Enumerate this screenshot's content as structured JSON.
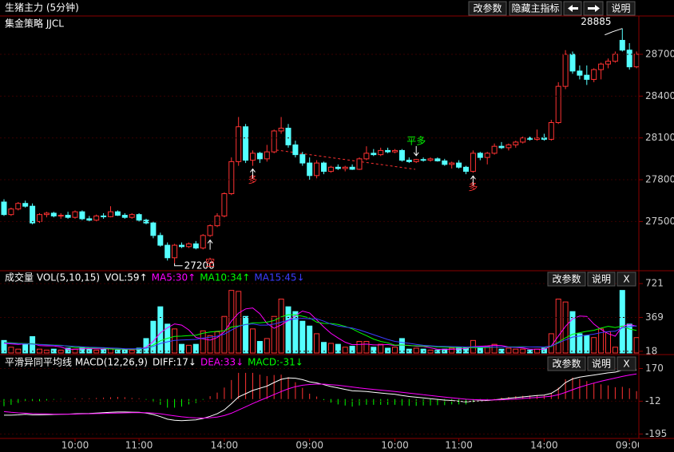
{
  "chart_data": [
    {
      "type": "candlestick",
      "title": "生猪主力 (5分钟)",
      "subtitle": "集金策略 JJCL",
      "buttons": [
        "改参数",
        "隐藏主指标",
        "说明"
      ],
      "up_color": "#ff3232",
      "down_color": "#54ffff",
      "categories": [
        null,
        null,
        null,
        null,
        null,
        null,
        null,
        null,
        null,
        null,
        "10:00",
        null,
        null,
        null,
        null,
        null,
        null,
        null,
        null,
        "11:00",
        null,
        null,
        null,
        null,
        null,
        null,
        null,
        null,
        null,
        null,
        null,
        "14:00",
        null,
        null,
        null,
        null,
        null,
        null,
        null,
        null,
        null,
        null,
        null,
        "09:00",
        null,
        null,
        null,
        null,
        null,
        null,
        null,
        null,
        null,
        null,
        null,
        "10:00",
        null,
        null,
        null,
        null,
        null,
        null,
        null,
        null,
        "11:00",
        null,
        null,
        null,
        null,
        null,
        null,
        null,
        null,
        null,
        null,
        null,
        "14:00",
        null,
        null,
        null,
        null,
        null,
        null,
        null,
        null,
        null,
        null,
        null,
        "09:00",
        null
      ],
      "open": [
        27640,
        27550,
        27590,
        27630,
        27610,
        27500,
        27550,
        27560,
        27540,
        27545,
        27530,
        27570,
        27520,
        27510,
        27540,
        27535,
        27570,
        27545,
        27530,
        27550,
        27510,
        27490,
        27400,
        27330,
        27240,
        27330,
        27320,
        27340,
        27310,
        27400,
        27470,
        27540,
        27700,
        27930,
        28180,
        27940,
        27990,
        27950,
        28000,
        28150,
        28170,
        28050,
        27980,
        27920,
        27830,
        27920,
        27860,
        27890,
        27880,
        27890,
        27875,
        27950,
        27990,
        27980,
        28010,
        28000,
        28010,
        27940,
        27930,
        27945,
        27940,
        27950,
        27935,
        27910,
        27920,
        27890,
        27860,
        27990,
        27960,
        27990,
        28040,
        28030,
        28050,
        28070,
        28100,
        28090,
        28100,
        28090,
        28210,
        28470,
        28700,
        28580,
        28550,
        28520,
        28590,
        28630,
        28650,
        28800,
        28730,
        28610
      ],
      "high": [
        27660,
        27600,
        27640,
        27650,
        27630,
        27560,
        27570,
        27570,
        27560,
        27570,
        27580,
        27580,
        27540,
        27550,
        27560,
        27610,
        27580,
        27560,
        27560,
        27560,
        27520,
        27500,
        27420,
        27350,
        27340,
        27350,
        27350,
        27360,
        27410,
        27480,
        27560,
        27710,
        27960,
        28250,
        28200,
        28010,
        28000,
        28050,
        28160,
        28250,
        28200,
        28080,
        28000,
        27960,
        27940,
        27930,
        27900,
        27910,
        27900,
        27910,
        27960,
        28040,
        28020,
        28030,
        28030,
        28020,
        28020,
        27960,
        27950,
        27960,
        27960,
        27960,
        27950,
        27930,
        27940,
        27900,
        28010,
        28000,
        28000,
        28060,
        28070,
        28060,
        28080,
        28110,
        28110,
        28160,
        28130,
        28230,
        28500,
        28730,
        28720,
        28620,
        28620,
        28600,
        28640,
        28670,
        28720,
        28885,
        28780,
        28720
      ],
      "low": [
        27540,
        27540,
        27580,
        27600,
        27480,
        27490,
        27530,
        27530,
        27520,
        27520,
        27520,
        27510,
        27500,
        27500,
        27520,
        27530,
        27540,
        27520,
        27520,
        27500,
        27480,
        27380,
        27320,
        27220,
        27200,
        27310,
        27310,
        27300,
        27300,
        27390,
        27460,
        27530,
        27690,
        27900,
        27920,
        27900,
        27920,
        27930,
        27990,
        28130,
        28030,
        27960,
        27900,
        27800,
        27810,
        27840,
        27850,
        27870,
        27860,
        27870,
        27870,
        27940,
        27970,
        27970,
        27990,
        27990,
        27930,
        27920,
        27920,
        27930,
        27930,
        27930,
        27900,
        27880,
        27880,
        27840,
        27850,
        27940,
        27910,
        27980,
        28020,
        28010,
        28030,
        28060,
        28080,
        28080,
        28080,
        28080,
        28200,
        28450,
        28560,
        28520,
        28480,
        28500,
        28520,
        28600,
        28640,
        28720,
        28590,
        28600
      ],
      "close": [
        27550,
        27590,
        27630,
        27610,
        27490,
        27550,
        27560,
        27540,
        27545,
        27530,
        27570,
        27520,
        27510,
        27540,
        27535,
        27570,
        27545,
        27530,
        27550,
        27510,
        27490,
        27400,
        27330,
        27240,
        27330,
        27320,
        27340,
        27310,
        27400,
        27470,
        27540,
        27700,
        27930,
        28180,
        27940,
        27990,
        27950,
        28000,
        28150,
        28170,
        28050,
        27980,
        27920,
        27830,
        27920,
        27860,
        27890,
        27880,
        27890,
        27875,
        27950,
        27990,
        27980,
        28010,
        28000,
        28010,
        27940,
        27930,
        27945,
        27940,
        27950,
        27935,
        27910,
        27920,
        27890,
        27860,
        27990,
        27960,
        27990,
        28040,
        28030,
        28050,
        28070,
        28100,
        28090,
        28100,
        28090,
        28210,
        28470,
        28700,
        28580,
        28550,
        28520,
        28590,
        28630,
        28650,
        28700,
        28730,
        28610,
        28700
      ],
      "annotations": [
        "28885",
        "27200",
        "多",
        "空",
        "平多",
        "多"
      ],
      "ylim": [
        27170,
        28975
      ],
      "yticks": [
        27500,
        27800,
        28100,
        28400,
        28700
      ]
    },
    {
      "type": "volume",
      "title": "成交量 VOL(5,10,15)",
      "buttons": [
        "改参数",
        "说明",
        "X"
      ],
      "series": [
        {
          "name": "VOL:59↑",
          "color": "#ffffff",
          "values": [
            130,
            60,
            40,
            90,
            170,
            40,
            30,
            40,
            30,
            50,
            40,
            60,
            40,
            30,
            40,
            50,
            30,
            40,
            30,
            50,
            150,
            330,
            480,
            300,
            250,
            90,
            80,
            90,
            230,
            180,
            220,
            380,
            650,
            640,
            380,
            250,
            120,
            150,
            380,
            560,
            480,
            430,
            330,
            280,
            200,
            110,
            100,
            90,
            60,
            70,
            120,
            120,
            60,
            90,
            50,
            60,
            150,
            40,
            50,
            40,
            30,
            30,
            40,
            50,
            60,
            50,
            130,
            60,
            70,
            90,
            40,
            50,
            40,
            40,
            30,
            40,
            50,
            200,
            560,
            530,
            430,
            200,
            180,
            160,
            250,
            220,
            60,
            650,
            300,
            160
          ]
        },
        {
          "name": "MA5:30↑",
          "color": "#ff00ff",
          "values": [
            100,
            95,
            90,
            95,
            98,
            76,
            74,
            74,
            62,
            38,
            38,
            44,
            46,
            44,
            42,
            44,
            38,
            38,
            38,
            40,
            60,
            120,
            208,
            262,
            302,
            290,
            240,
            162,
            148,
            134,
            160,
            220,
            332,
            414,
            458,
            468,
            408,
            308,
            256,
            292,
            338,
            388,
            436,
            416,
            344,
            270,
            204,
            156,
            112,
            86,
            88,
            92,
            84,
            84,
            88,
            76,
            82,
            80,
            70,
            68,
            54,
            38,
            38,
            38,
            42,
            46,
            66,
            70,
            74,
            80,
            78,
            62,
            58,
            52,
            40,
            40,
            40,
            72,
            176,
            276,
            354,
            384,
            380,
            300,
            244,
            202,
            174,
            276,
            296,
            278
          ]
        },
        {
          "name": "MA10:34↑",
          "color": "#00ff00",
          "values": [
            110,
            105,
            100,
            98,
            96,
            90,
            86,
            82,
            80,
            70,
            57,
            59,
            53,
            53,
            52,
            41,
            41,
            41,
            40,
            41,
            51,
            82,
            127,
            153,
            172,
            175,
            180,
            185,
            205,
            218,
            225,
            230,
            270,
            281,
            296,
            314,
            314,
            320,
            337,
            375,
            398,
            397,
            382,
            364,
            320,
            307,
            306,
            296,
            276,
            251,
            213,
            180,
            144,
            120,
            105,
            81,
            84,
            76,
            75,
            72,
            70,
            63,
            61,
            57,
            57,
            58,
            56,
            56,
            57,
            61,
            61,
            63,
            63,
            64,
            62,
            61,
            60,
            67,
            113,
            158,
            195,
            211,
            225,
            236,
            258,
            277,
            265,
            280,
            249,
            235
          ]
        },
        {
          "name": "MA15:45↓",
          "color": "#3c3cff",
          "values": [
            105,
            102,
            98,
            95,
            92,
            88,
            84,
            80,
            76,
            72,
            68,
            64,
            60,
            58,
            56,
            52,
            50,
            45,
            43,
            44,
            51,
            69,
            99,
            116,
            131,
            135,
            138,
            141,
            155,
            164,
            174,
            196,
            238,
            276,
            295,
            302,
            290,
            290,
            300,
            320,
            340,
            354,
            360,
            354,
            355,
            330,
            300,
            280,
            270,
            260,
            240,
            215,
            190,
            165,
            140,
            120,
            110,
            100,
            90,
            80,
            75,
            70,
            68,
            66,
            65,
            62,
            65,
            62,
            62,
            63,
            62,
            61,
            60,
            61,
            62,
            63,
            62,
            72,
            104,
            136,
            165,
            176,
            186,
            196,
            212,
            222,
            226,
            262,
            274,
            282
          ]
        }
      ],
      "ylim": [
        0,
        780
      ],
      "yticks": [
        18,
        369,
        721
      ]
    },
    {
      "type": "macd",
      "title": "平滑异同平均线 MACD(12,26,9)",
      "buttons": [
        "改参数",
        "说明",
        "X"
      ],
      "series": [
        {
          "name": "DIFF:17↓",
          "color": "#ffffff",
          "values": [
            -90,
            -90,
            -88,
            -85,
            -88,
            -88,
            -87,
            -86,
            -85,
            -84,
            -82,
            -81,
            -80,
            -78,
            -76,
            -74,
            -72,
            -72,
            -73,
            -74,
            -78,
            -86,
            -98,
            -112,
            -118,
            -120,
            -118,
            -116,
            -108,
            -96,
            -82,
            -60,
            -26,
            12,
            30,
            48,
            60,
            72,
            92,
            110,
            118,
            116,
            108,
            96,
            90,
            80,
            70,
            62,
            54,
            46,
            44,
            42,
            38,
            34,
            30,
            26,
            20,
            14,
            10,
            6,
            2,
            -2,
            -6,
            -8,
            -12,
            -16,
            -12,
            -10,
            -8,
            -4,
            0,
            4,
            8,
            12,
            16,
            20,
            22,
            32,
            56,
            92,
            112,
            122,
            128,
            134,
            140,
            146,
            150,
            160,
            164,
            162
          ]
        },
        {
          "name": "DEA:33↓",
          "color": "#ff00ff",
          "values": [
            -70,
            -74,
            -77,
            -79,
            -81,
            -82,
            -83,
            -84,
            -84,
            -84,
            -84,
            -83,
            -82,
            -81,
            -80,
            -79,
            -78,
            -77,
            -76,
            -76,
            -76,
            -78,
            -82,
            -88,
            -94,
            -99,
            -103,
            -105,
            -106,
            -104,
            -100,
            -92,
            -79,
            -61,
            -43,
            -25,
            -8,
            8,
            25,
            42,
            57,
            69,
            77,
            81,
            83,
            83,
            80,
            77,
            72,
            67,
            62,
            58,
            54,
            50,
            46,
            42,
            38,
            33,
            29,
            24,
            20,
            15,
            11,
            7,
            3,
            -1,
            -3,
            -4,
            -5,
            -5,
            -4,
            -2,
            0,
            3,
            6,
            9,
            12,
            16,
            24,
            37,
            52,
            66,
            78,
            89,
            99,
            108,
            117,
            126,
            134,
            140
          ]
        },
        {
          "name": "MACD:-31↓",
          "color": "#00ff00",
          "up_color": "#ff3232",
          "down_color": "#00ff00",
          "values": [
            -40,
            -32,
            -22,
            -12,
            -14,
            -12,
            -8,
            -4,
            -2,
            0,
            4,
            4,
            4,
            6,
            8,
            10,
            12,
            10,
            6,
            4,
            -4,
            -16,
            -32,
            -48,
            -48,
            -42,
            -30,
            -22,
            -4,
            16,
            36,
            64,
            106,
            146,
            146,
            146,
            136,
            128,
            134,
            136,
            122,
            94,
            62,
            30,
            14,
            -6,
            -20,
            -30,
            -36,
            -42,
            -36,
            -32,
            -32,
            -32,
            -32,
            -32,
            -36,
            -38,
            -38,
            -36,
            -36,
            -34,
            -34,
            -30,
            -30,
            -30,
            -18,
            -12,
            -6,
            2,
            8,
            12,
            16,
            18,
            20,
            22,
            20,
            32,
            64,
            110,
            120,
            112,
            100,
            90,
            82,
            76,
            66,
            68,
            60,
            44
          ]
        }
      ],
      "ylim": [
        -215,
        190
      ],
      "yticks": [
        170,
        -12,
        -195
      ]
    }
  ]
}
